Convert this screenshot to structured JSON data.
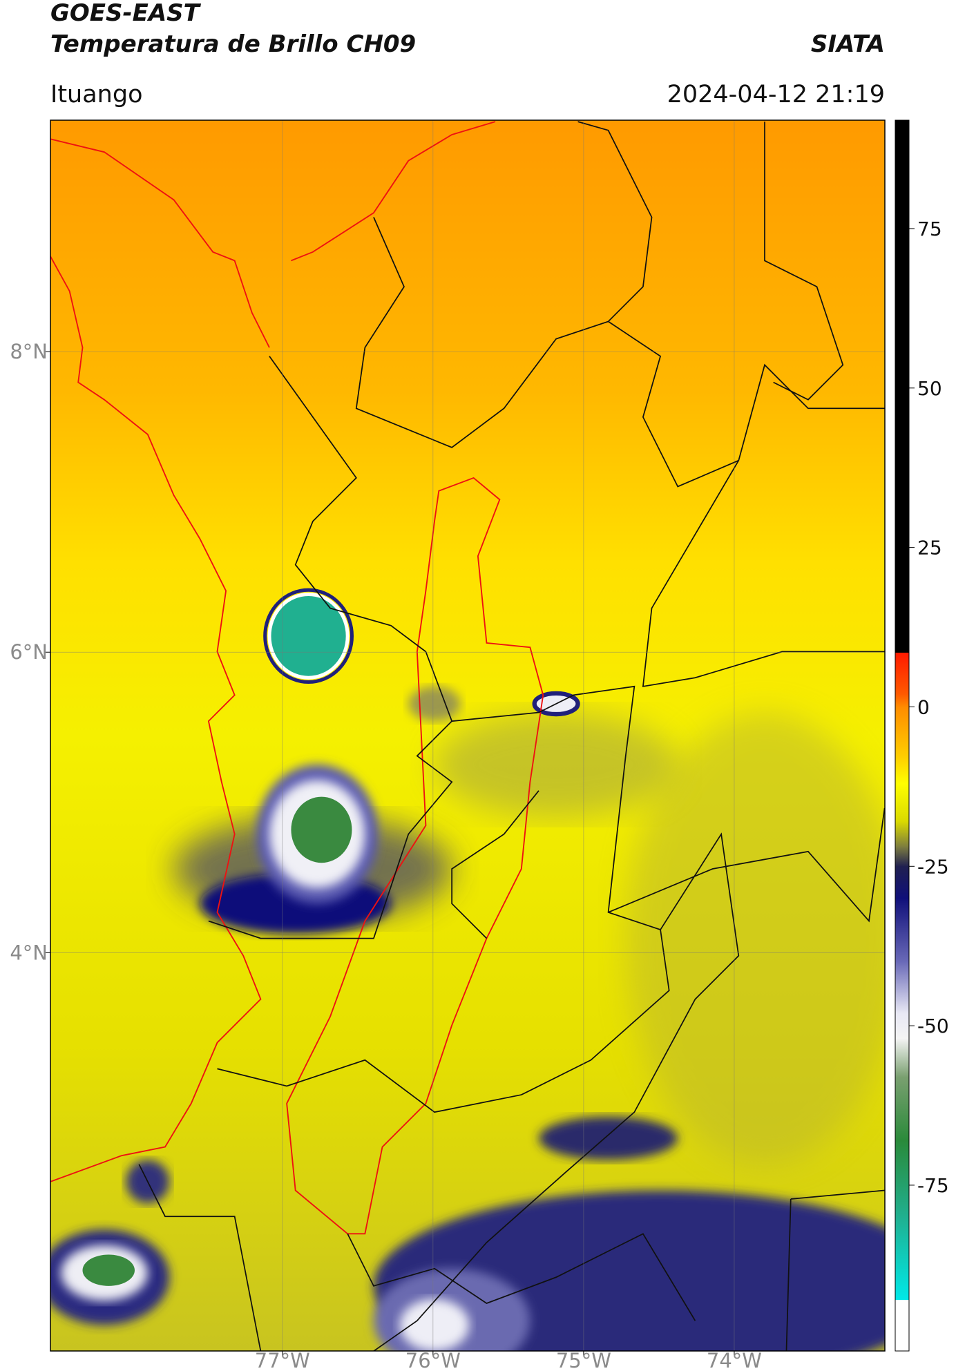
{
  "header": {
    "title": "GOES-EAST",
    "subtitle": "Temperatura de Brillo CH09",
    "source": "SIATA",
    "location": "Ituango",
    "datetime": "2024-04-12 21:19"
  },
  "map": {
    "lon_range": [
      -78.54,
      -73.0
    ],
    "lat_range": [
      1.35,
      9.54
    ],
    "lon_ticks": [
      {
        "value": -77,
        "label": "77°W"
      },
      {
        "value": -76,
        "label": "76°W"
      },
      {
        "value": -75,
        "label": "75°W"
      },
      {
        "value": -74,
        "label": "74°W"
      }
    ],
    "lat_ticks": [
      {
        "value": 8,
        "label": "8°N"
      },
      {
        "value": 6,
        "label": "6°N"
      },
      {
        "value": 4,
        "label": "4°N"
      }
    ],
    "grid": true
  },
  "colorbar": {
    "ylim": [
      -101,
      92
    ],
    "yticks": [
      75,
      50,
      25,
      0,
      -25,
      -50,
      -75
    ],
    "stops": [
      {
        "value": 92,
        "color": "#000000"
      },
      {
        "value": 8.5,
        "color": "#000000"
      },
      {
        "value": 8.5,
        "color": "#ff1a00"
      },
      {
        "value": 2,
        "color": "#ff5a00"
      },
      {
        "value": 0,
        "color": "#ff8c00"
      },
      {
        "value": -8,
        "color": "#ffd000"
      },
      {
        "value": -12,
        "color": "#ffff00"
      },
      {
        "value": -18,
        "color": "#d9d900"
      },
      {
        "value": -22,
        "color": "#7a7a40"
      },
      {
        "value": -25,
        "color": "#202050"
      },
      {
        "value": -30,
        "color": "#10107a"
      },
      {
        "value": -40,
        "color": "#6a6ab8"
      },
      {
        "value": -48,
        "color": "#e8e8f4"
      },
      {
        "value": -52,
        "color": "#f4f4f4"
      },
      {
        "value": -58,
        "color": "#7aa070"
      },
      {
        "value": -68,
        "color": "#2a8a3a"
      },
      {
        "value": -80,
        "color": "#20b090"
      },
      {
        "value": -93,
        "color": "#00e8e8"
      },
      {
        "value": -93,
        "color": "#ffffff"
      },
      {
        "value": -101,
        "color": "#ffffff"
      }
    ]
  }
}
